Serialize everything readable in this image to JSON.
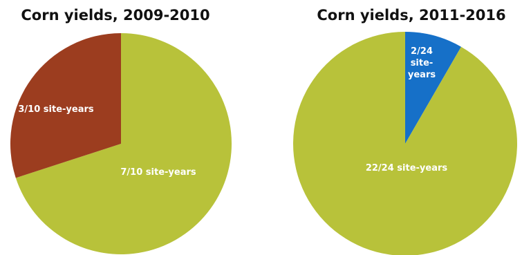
{
  "chart_data": [
    {
      "type": "pie",
      "title": "Corn yields, 2009-2010",
      "slices": [
        {
          "label": "7/10 site-years",
          "value": 7,
          "color": "#b8c23a"
        },
        {
          "label": "3/10 site-years",
          "value": 3,
          "color": "#9c3d1f"
        }
      ]
    },
    {
      "type": "pie",
      "title": "Corn yields, 2011-2016",
      "slices": [
        {
          "label": "22/24 site-years",
          "value": 22,
          "color": "#b8c23a"
        },
        {
          "label": "2/24 site-years",
          "label_lines": [
            "2/24",
            "site-",
            "years"
          ],
          "value": 2,
          "color": "#1670c8"
        }
      ]
    }
  ]
}
